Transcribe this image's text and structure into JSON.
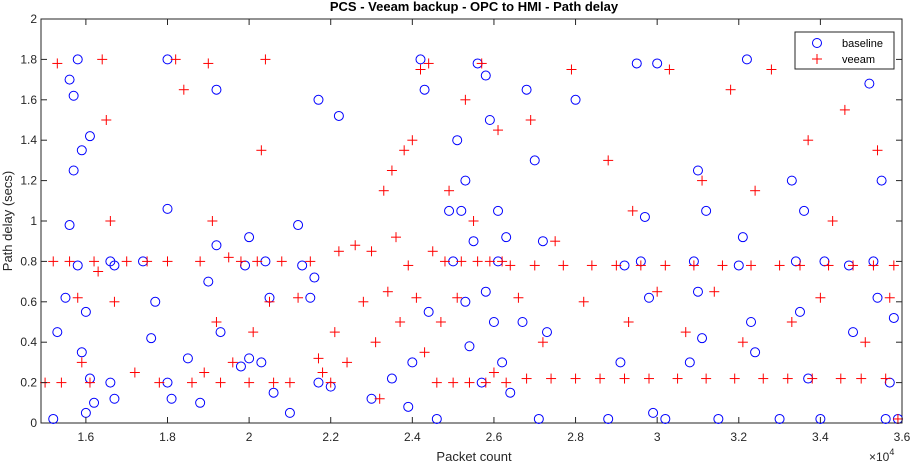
{
  "chart_data": {
    "type": "scatter",
    "title": "PCS - Veeam backup - OPC to HMI - Path delay",
    "xlabel": "Packet count",
    "ylabel": "Path delay (secs)",
    "x_exponent_label": "×10",
    "x_exponent_power": "4",
    "xlim": [
      1.49,
      3.6
    ],
    "ylim": [
      0,
      2
    ],
    "x_ticks": [
      "1.6",
      "1.8",
      "2",
      "2.2",
      "2.4",
      "2.6",
      "2.8",
      "3",
      "3.2",
      "3.4",
      "3.6"
    ],
    "x_tick_values": [
      1.6,
      1.8,
      2.0,
      2.2,
      2.4,
      2.6,
      2.8,
      3.0,
      3.2,
      3.4,
      3.6
    ],
    "y_ticks": [
      "0",
      "0.2",
      "0.4",
      "0.6",
      "0.8",
      "1",
      "1.2",
      "1.4",
      "1.6",
      "1.8",
      "2"
    ],
    "y_tick_values": [
      0,
      0.2,
      0.4,
      0.6,
      0.8,
      1.0,
      1.2,
      1.4,
      1.6,
      1.8,
      2.0
    ],
    "grid": false,
    "legend_position": "top-right",
    "series": [
      {
        "name": "baseline",
        "marker": "circle",
        "color": "#0000ff",
        "points": [
          [
            1.52,
            0.02
          ],
          [
            1.53,
            0.45
          ],
          [
            1.55,
            0.62
          ],
          [
            1.56,
            0.98
          ],
          [
            1.56,
            1.7
          ],
          [
            1.57,
            1.25
          ],
          [
            1.57,
            1.62
          ],
          [
            1.58,
            1.8
          ],
          [
            1.58,
            0.78
          ],
          [
            1.59,
            0.35
          ],
          [
            1.59,
            1.35
          ],
          [
            1.6,
            0.05
          ],
          [
            1.6,
            0.55
          ],
          [
            1.61,
            1.42
          ],
          [
            1.61,
            0.22
          ],
          [
            1.62,
            0.1
          ],
          [
            1.66,
            0.8
          ],
          [
            1.67,
            0.78
          ],
          [
            1.66,
            0.2
          ],
          [
            1.67,
            0.12
          ],
          [
            1.74,
            0.8
          ],
          [
            1.76,
            0.42
          ],
          [
            1.77,
            0.6
          ],
          [
            1.8,
            1.8
          ],
          [
            1.8,
            1.06
          ],
          [
            1.8,
            0.2
          ],
          [
            1.81,
            0.12
          ],
          [
            1.85,
            0.32
          ],
          [
            1.88,
            0.1
          ],
          [
            1.9,
            0.7
          ],
          [
            1.92,
            1.65
          ],
          [
            1.92,
            0.88
          ],
          [
            1.93,
            0.45
          ],
          [
            1.98,
            0.28
          ],
          [
            1.99,
            0.78
          ],
          [
            2.0,
            0.92
          ],
          [
            2.0,
            0.32
          ],
          [
            2.03,
            0.3
          ],
          [
            2.04,
            0.8
          ],
          [
            2.05,
            0.62
          ],
          [
            2.06,
            0.15
          ],
          [
            2.1,
            0.05
          ],
          [
            2.12,
            0.98
          ],
          [
            2.13,
            0.78
          ],
          [
            2.15,
            0.62
          ],
          [
            2.16,
            0.72
          ],
          [
            2.17,
            0.2
          ],
          [
            2.17,
            1.6
          ],
          [
            2.2,
            0.18
          ],
          [
            2.22,
            1.52
          ],
          [
            2.3,
            0.12
          ],
          [
            2.35,
            0.22
          ],
          [
            2.39,
            0.08
          ],
          [
            2.4,
            0.3
          ],
          [
            2.42,
            1.8
          ],
          [
            2.43,
            1.65
          ],
          [
            2.44,
            0.55
          ],
          [
            2.46,
            0.02
          ],
          [
            2.49,
            1.05
          ],
          [
            2.5,
            0.8
          ],
          [
            2.51,
            1.4
          ],
          [
            2.52,
            1.05
          ],
          [
            2.53,
            0.6
          ],
          [
            2.53,
            1.2
          ],
          [
            2.54,
            0.38
          ],
          [
            2.55,
            0.9
          ],
          [
            2.56,
            1.78
          ],
          [
            2.57,
            0.2
          ],
          [
            2.58,
            1.72
          ],
          [
            2.58,
            0.65
          ],
          [
            2.59,
            1.5
          ],
          [
            2.6,
            0.5
          ],
          [
            2.61,
            1.05
          ],
          [
            2.61,
            0.8
          ],
          [
            2.62,
            0.3
          ],
          [
            2.63,
            0.92
          ],
          [
            2.64,
            0.15
          ],
          [
            2.67,
            0.5
          ],
          [
            2.68,
            1.65
          ],
          [
            2.7,
            1.3
          ],
          [
            2.71,
            0.02
          ],
          [
            2.72,
            0.9
          ],
          [
            2.73,
            0.45
          ],
          [
            2.8,
            1.6
          ],
          [
            2.88,
            0.02
          ],
          [
            2.91,
            0.3
          ],
          [
            2.92,
            0.78
          ],
          [
            2.95,
            1.78
          ],
          [
            2.96,
            0.8
          ],
          [
            2.97,
            1.02
          ],
          [
            2.98,
            0.62
          ],
          [
            2.99,
            0.05
          ],
          [
            3.0,
            1.78
          ],
          [
            3.02,
            0.02
          ],
          [
            3.08,
            0.3
          ],
          [
            3.09,
            0.8
          ],
          [
            3.1,
            0.65
          ],
          [
            3.1,
            1.25
          ],
          [
            3.11,
            0.42
          ],
          [
            3.12,
            1.05
          ],
          [
            3.15,
            0.02
          ],
          [
            3.2,
            0.78
          ],
          [
            3.21,
            0.92
          ],
          [
            3.22,
            1.8
          ],
          [
            3.23,
            0.5
          ],
          [
            3.24,
            0.35
          ],
          [
            3.3,
            0.02
          ],
          [
            3.33,
            1.2
          ],
          [
            3.34,
            0.8
          ],
          [
            3.35,
            0.55
          ],
          [
            3.36,
            1.05
          ],
          [
            3.37,
            0.22
          ],
          [
            3.4,
            0.02
          ],
          [
            3.41,
            0.8
          ],
          [
            3.47,
            0.78
          ],
          [
            3.48,
            0.45
          ],
          [
            3.52,
            1.68
          ],
          [
            3.53,
            0.8
          ],
          [
            3.54,
            0.62
          ],
          [
            3.55,
            1.2
          ],
          [
            3.56,
            0.02
          ],
          [
            3.57,
            0.2
          ],
          [
            3.58,
            0.52
          ],
          [
            3.59,
            0.02
          ]
        ]
      },
      {
        "name": "veeam",
        "marker": "plus",
        "color": "#ff0000",
        "points": [
          [
            1.5,
            0.2
          ],
          [
            1.52,
            0.8
          ],
          [
            1.53,
            1.78
          ],
          [
            1.54,
            0.2
          ],
          [
            1.56,
            0.8
          ],
          [
            1.58,
            0.62
          ],
          [
            1.59,
            0.3
          ],
          [
            1.61,
            0.2
          ],
          [
            1.62,
            0.8
          ],
          [
            1.63,
            0.75
          ],
          [
            1.64,
            1.8
          ],
          [
            1.65,
            1.5
          ],
          [
            1.66,
            1.0
          ],
          [
            1.67,
            0.6
          ],
          [
            1.7,
            0.8
          ],
          [
            1.72,
            0.25
          ],
          [
            1.75,
            0.8
          ],
          [
            1.78,
            0.2
          ],
          [
            1.8,
            0.8
          ],
          [
            1.82,
            1.8
          ],
          [
            1.84,
            1.65
          ],
          [
            1.86,
            0.2
          ],
          [
            1.88,
            0.8
          ],
          [
            1.89,
            0.25
          ],
          [
            1.9,
            1.78
          ],
          [
            1.91,
            1.0
          ],
          [
            1.92,
            0.5
          ],
          [
            1.93,
            0.2
          ],
          [
            1.95,
            0.82
          ],
          [
            1.96,
            0.3
          ],
          [
            1.98,
            0.8
          ],
          [
            2.0,
            0.2
          ],
          [
            2.01,
            0.45
          ],
          [
            2.02,
            0.8
          ],
          [
            2.03,
            1.35
          ],
          [
            2.04,
            1.8
          ],
          [
            2.05,
            0.6
          ],
          [
            2.06,
            0.2
          ],
          [
            2.08,
            0.8
          ],
          [
            2.1,
            0.2
          ],
          [
            2.12,
            0.62
          ],
          [
            2.15,
            0.8
          ],
          [
            2.17,
            0.32
          ],
          [
            2.18,
            0.25
          ],
          [
            2.2,
            0.2
          ],
          [
            2.21,
            0.45
          ],
          [
            2.22,
            0.85
          ],
          [
            2.24,
            0.3
          ],
          [
            2.26,
            0.88
          ],
          [
            2.28,
            0.6
          ],
          [
            2.3,
            0.85
          ],
          [
            2.31,
            0.4
          ],
          [
            2.32,
            0.12
          ],
          [
            2.33,
            1.15
          ],
          [
            2.34,
            0.65
          ],
          [
            2.35,
            1.25
          ],
          [
            2.36,
            0.92
          ],
          [
            2.37,
            0.5
          ],
          [
            2.38,
            1.35
          ],
          [
            2.39,
            0.78
          ],
          [
            2.4,
            1.4
          ],
          [
            2.41,
            0.62
          ],
          [
            2.42,
            1.75
          ],
          [
            2.43,
            0.35
          ],
          [
            2.44,
            1.78
          ],
          [
            2.45,
            0.85
          ],
          [
            2.46,
            0.2
          ],
          [
            2.47,
            0.5
          ],
          [
            2.48,
            0.8
          ],
          [
            2.49,
            1.15
          ],
          [
            2.5,
            0.2
          ],
          [
            2.51,
            0.62
          ],
          [
            2.52,
            0.8
          ],
          [
            2.53,
            1.6
          ],
          [
            2.54,
            0.2
          ],
          [
            2.55,
            1.0
          ],
          [
            2.56,
            0.8
          ],
          [
            2.57,
            1.78
          ],
          [
            2.58,
            0.2
          ],
          [
            2.59,
            0.8
          ],
          [
            2.6,
            0.25
          ],
          [
            2.61,
            1.45
          ],
          [
            2.62,
            0.8
          ],
          [
            2.63,
            0.2
          ],
          [
            2.64,
            0.78
          ],
          [
            2.66,
            0.62
          ],
          [
            2.68,
            0.22
          ],
          [
            2.69,
            1.5
          ],
          [
            2.7,
            0.78
          ],
          [
            2.72,
            0.4
          ],
          [
            2.74,
            0.22
          ],
          [
            2.75,
            0.9
          ],
          [
            2.77,
            0.78
          ],
          [
            2.79,
            1.75
          ],
          [
            2.8,
            0.22
          ],
          [
            2.82,
            0.6
          ],
          [
            2.84,
            0.78
          ],
          [
            2.86,
            0.22
          ],
          [
            2.88,
            1.3
          ],
          [
            2.9,
            0.78
          ],
          [
            2.92,
            0.22
          ],
          [
            2.93,
            0.5
          ],
          [
            2.94,
            1.05
          ],
          [
            2.96,
            0.78
          ],
          [
            2.98,
            0.22
          ],
          [
            3.0,
            0.65
          ],
          [
            3.02,
            0.78
          ],
          [
            3.03,
            1.75
          ],
          [
            3.05,
            0.22
          ],
          [
            3.07,
            0.45
          ],
          [
            3.09,
            0.78
          ],
          [
            3.11,
            1.2
          ],
          [
            3.12,
            0.22
          ],
          [
            3.14,
            0.65
          ],
          [
            3.16,
            0.78
          ],
          [
            3.18,
            1.65
          ],
          [
            3.19,
            0.22
          ],
          [
            3.21,
            0.4
          ],
          [
            3.23,
            0.78
          ],
          [
            3.24,
            1.15
          ],
          [
            3.26,
            0.22
          ],
          [
            3.28,
            1.75
          ],
          [
            3.3,
            0.78
          ],
          [
            3.32,
            0.22
          ],
          [
            3.33,
            0.5
          ],
          [
            3.35,
            0.78
          ],
          [
            3.37,
            1.4
          ],
          [
            3.38,
            0.22
          ],
          [
            3.4,
            0.62
          ],
          [
            3.42,
            0.78
          ],
          [
            3.43,
            1.0
          ],
          [
            3.45,
            0.22
          ],
          [
            3.46,
            1.55
          ],
          [
            3.48,
            0.78
          ],
          [
            3.5,
            0.22
          ],
          [
            3.51,
            0.4
          ],
          [
            3.53,
            0.78
          ],
          [
            3.54,
            1.35
          ],
          [
            3.56,
            0.22
          ],
          [
            3.57,
            0.62
          ],
          [
            3.58,
            0.78
          ],
          [
            3.59,
            0.02
          ]
        ]
      }
    ]
  }
}
